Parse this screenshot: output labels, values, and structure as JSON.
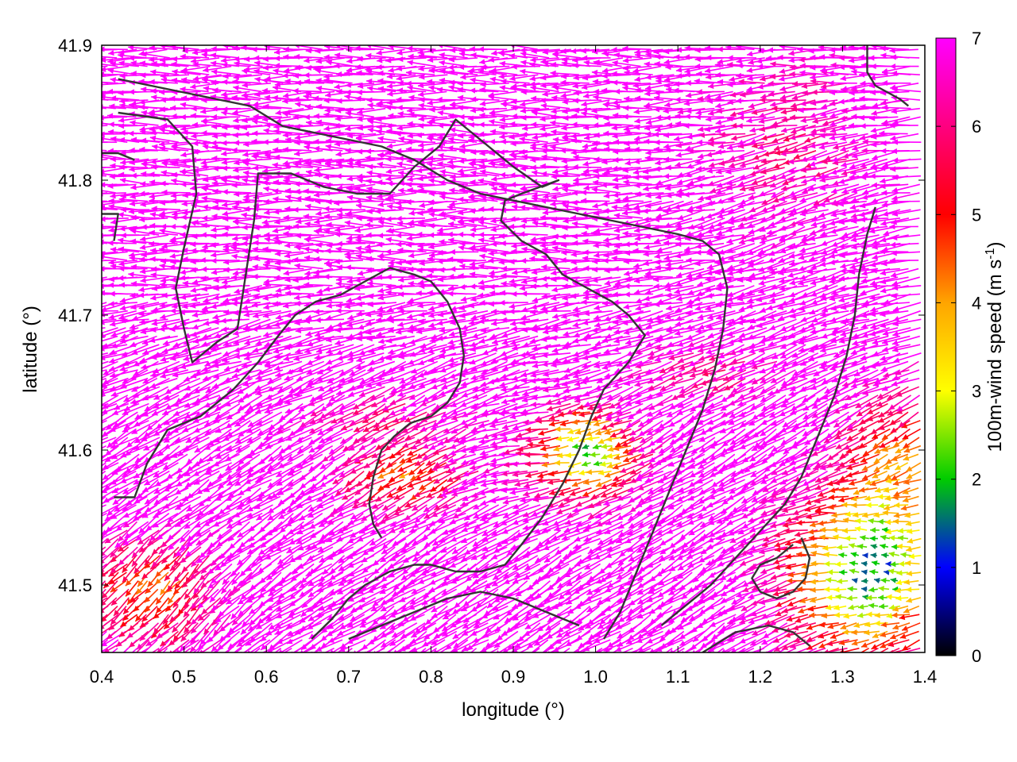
{
  "chart_data": {
    "type": "vector-field",
    "xlabel": "longitude (°)",
    "ylabel": "latitude (°)",
    "xlim": [
      0.4,
      1.4
    ],
    "ylim": [
      41.45,
      41.9
    ],
    "x_ticks": [
      0.4,
      0.5,
      0.6,
      0.7,
      0.8,
      0.9,
      1.0,
      1.1,
      1.2,
      1.3,
      1.4
    ],
    "x_tick_labels": [
      "0.4",
      "0.5",
      "0.6",
      "0.7",
      "0.8",
      "0.9",
      "1.0",
      "1.1",
      "1.2",
      "1.3",
      "1.4"
    ],
    "y_ticks": [
      41.5,
      41.6,
      41.7,
      41.8,
      41.9
    ],
    "y_tick_labels": [
      "41.5",
      "41.6",
      "41.7",
      "41.8",
      "41.9"
    ],
    "colorbar": {
      "label_main": "100m-wind speed (m s",
      "label_sup": "-1",
      "label_end": ")",
      "range": [
        0,
        7
      ],
      "ticks": [
        0,
        1,
        2,
        3,
        4,
        5,
        6,
        7
      ],
      "tick_labels": [
        "0",
        "1",
        "2",
        "3",
        "4",
        "5",
        "6",
        "7"
      ],
      "palette": [
        "#000000",
        "#0000ff",
        "#00cc00",
        "#ffff00",
        "#ffa500",
        "#ff0000",
        "#ff00ff"
      ]
    },
    "vector_grid": {
      "lon_step": 0.0125,
      "lat_step": 0.00625
    },
    "wind_regions": [
      {
        "description": "dominant westward flow, north",
        "speed": 7.0,
        "direction_deg": 180
      },
      {
        "description": "south-west descending flow",
        "speed": 6.5,
        "direction_deg": 215
      },
      {
        "description": "weak wind zone",
        "center": [
          1.0,
          41.6
        ],
        "speed": 2.5
      },
      {
        "description": "calm south-east zone",
        "center": [
          1.33,
          41.51
        ],
        "speed": 1.8
      },
      {
        "description": "moderate zone",
        "center": [
          0.78,
          41.58
        ],
        "speed": 4.0
      }
    ],
    "coastlines": [
      [
        [
          0.42,
          41.85
        ],
        [
          0.48,
          41.845
        ],
        [
          0.51,
          41.825
        ],
        [
          0.515,
          41.79
        ],
        [
          0.5,
          41.75
        ],
        [
          0.49,
          41.72
        ],
        [
          0.5,
          41.69
        ],
        [
          0.51,
          41.665
        ],
        [
          0.54,
          41.68
        ],
        [
          0.565,
          41.69
        ],
        [
          0.575,
          41.73
        ],
        [
          0.585,
          41.77
        ],
        [
          0.59,
          41.805
        ],
        [
          0.63,
          41.805
        ],
        [
          0.67,
          41.795
        ],
        [
          0.71,
          41.79
        ],
        [
          0.75,
          41.79
        ],
        [
          0.78,
          41.81
        ],
        [
          0.81,
          41.825
        ],
        [
          0.83,
          41.845
        ],
        [
          0.86,
          41.83
        ],
        [
          0.9,
          41.81
        ],
        [
          0.935,
          41.795
        ],
        [
          0.955,
          41.8
        ],
        [
          0.91,
          41.79
        ],
        [
          0.89,
          41.785
        ],
        [
          0.885,
          41.77
        ],
        [
          0.91,
          41.755
        ],
        [
          0.94,
          41.745
        ],
        [
          0.96,
          41.73
        ],
        [
          0.99,
          41.72
        ],
        [
          1.02,
          41.71
        ],
        [
          1.04,
          41.7
        ],
        [
          1.06,
          41.685
        ],
        [
          1.04,
          41.665
        ],
        [
          1.01,
          41.645
        ],
        [
          0.995,
          41.625
        ],
        [
          0.98,
          41.6
        ],
        [
          0.96,
          41.575
        ],
        [
          0.935,
          41.55
        ],
        [
          0.91,
          41.53
        ],
        [
          0.89,
          41.515
        ],
        [
          0.86,
          41.51
        ],
        [
          0.83,
          41.51
        ],
        [
          0.8,
          41.515
        ],
        [
          0.78,
          41.515
        ],
        [
          0.75,
          41.51
        ],
        [
          0.72,
          41.5
        ],
        [
          0.7,
          41.49
        ],
        [
          0.68,
          41.475
        ],
        [
          0.655,
          41.46
        ]
      ],
      [
        [
          0.415,
          41.565
        ],
        [
          0.44,
          41.565
        ],
        [
          0.455,
          41.59
        ],
        [
          0.48,
          41.615
        ],
        [
          0.52,
          41.625
        ],
        [
          0.56,
          41.645
        ],
        [
          0.59,
          41.665
        ],
        [
          0.615,
          41.685
        ],
        [
          0.635,
          41.7
        ],
        [
          0.66,
          41.71
        ],
        [
          0.69,
          41.715
        ],
        [
          0.72,
          41.725
        ],
        [
          0.75,
          41.735
        ],
        [
          0.78,
          41.73
        ],
        [
          0.8,
          41.725
        ],
        [
          0.82,
          41.71
        ],
        [
          0.835,
          41.69
        ],
        [
          0.84,
          41.67
        ],
        [
          0.835,
          41.65
        ],
        [
          0.82,
          41.635
        ],
        [
          0.8,
          41.625
        ],
        [
          0.775,
          41.62
        ],
        [
          0.755,
          41.61
        ],
        [
          0.74,
          41.6
        ],
        [
          0.73,
          41.58
        ],
        [
          0.725,
          41.56
        ],
        [
          0.73,
          41.545
        ],
        [
          0.74,
          41.535
        ]
      ],
      [
        [
          0.42,
          41.875
        ],
        [
          0.46,
          41.87
        ],
        [
          0.5,
          41.865
        ],
        [
          0.54,
          41.86
        ],
        [
          0.58,
          41.855
        ],
        [
          0.62,
          41.84
        ],
        [
          0.66,
          41.835
        ],
        [
          0.7,
          41.83
        ],
        [
          0.74,
          41.825
        ],
        [
          0.78,
          41.815
        ],
        [
          0.82,
          41.8
        ],
        [
          0.86,
          41.79
        ],
        [
          0.9,
          41.785
        ],
        [
          0.94,
          41.78
        ],
        [
          0.98,
          41.775
        ],
        [
          1.02,
          41.77
        ],
        [
          1.06,
          41.765
        ],
        [
          1.1,
          41.76
        ],
        [
          1.13,
          41.755
        ],
        [
          1.15,
          41.745
        ],
        [
          1.16,
          41.72
        ],
        [
          1.155,
          41.69
        ],
        [
          1.145,
          41.66
        ],
        [
          1.13,
          41.63
        ],
        [
          1.11,
          41.6
        ],
        [
          1.09,
          41.57
        ],
        [
          1.07,
          41.54
        ],
        [
          1.05,
          41.51
        ],
        [
          1.03,
          41.48
        ],
        [
          1.01,
          41.46
        ]
      ],
      [
        [
          1.34,
          41.78
        ],
        [
          1.33,
          41.76
        ],
        [
          1.32,
          41.73
        ],
        [
          1.315,
          41.7
        ],
        [
          1.305,
          41.67
        ],
        [
          1.29,
          41.64
        ],
        [
          1.27,
          41.61
        ],
        [
          1.25,
          41.58
        ],
        [
          1.23,
          41.56
        ],
        [
          1.2,
          41.54
        ],
        [
          1.17,
          41.52
        ],
        [
          1.14,
          41.5
        ],
        [
          1.11,
          41.485
        ],
        [
          1.08,
          41.47
        ]
      ],
      [
        [
          1.25,
          41.535
        ],
        [
          1.26,
          41.52
        ],
        [
          1.255,
          41.505
        ],
        [
          1.24,
          41.495
        ],
        [
          1.22,
          41.49
        ],
        [
          1.2,
          41.495
        ],
        [
          1.19,
          41.505
        ],
        [
          1.2,
          41.515
        ],
        [
          1.22,
          41.52
        ],
        [
          1.24,
          41.53
        ]
      ],
      [
        [
          1.13,
          41.45
        ],
        [
          1.17,
          41.465
        ],
        [
          1.21,
          41.47
        ],
        [
          1.24,
          41.465
        ],
        [
          1.26,
          41.455
        ]
      ],
      [
        [
          0.7,
          41.46
        ],
        [
          0.74,
          41.47
        ],
        [
          0.78,
          41.48
        ],
        [
          0.82,
          41.49
        ],
        [
          0.86,
          41.495
        ],
        [
          0.9,
          41.49
        ],
        [
          0.94,
          41.48
        ],
        [
          0.98,
          41.47
        ]
      ],
      [
        [
          1.33,
          41.9
        ],
        [
          1.33,
          41.88
        ],
        [
          1.34,
          41.87
        ],
        [
          1.37,
          41.86
        ],
        [
          1.38,
          41.855
        ]
      ],
      [
        [
          0.4,
          41.82
        ],
        [
          0.42,
          41.82
        ],
        [
          0.44,
          41.815
        ]
      ],
      [
        [
          0.4,
          41.775
        ],
        [
          0.42,
          41.775
        ],
        [
          0.415,
          41.755
        ]
      ]
    ]
  }
}
